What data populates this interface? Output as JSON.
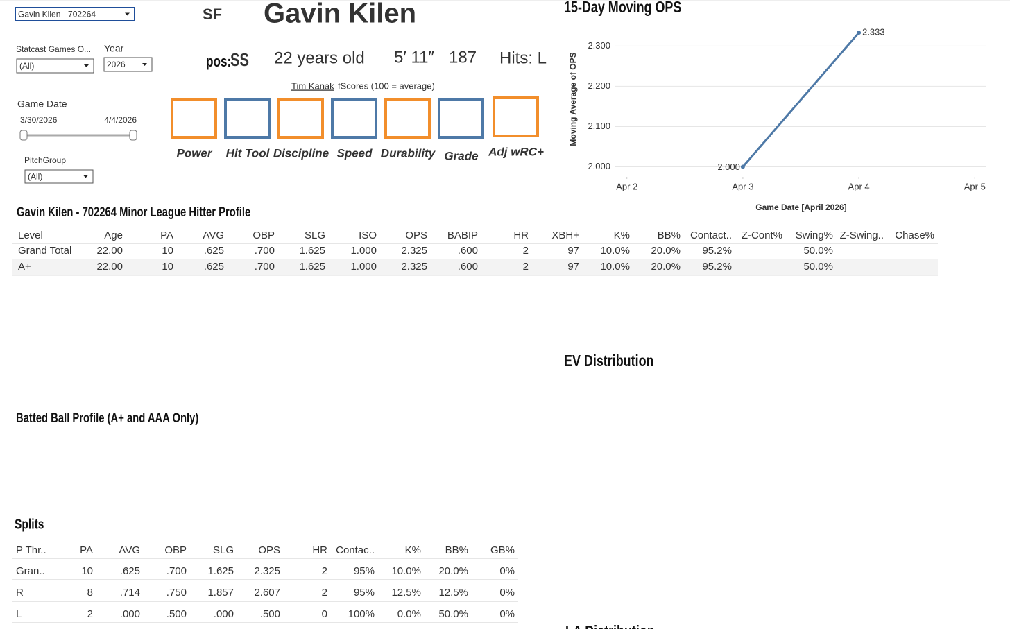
{
  "filters": {
    "batter": "Gavin Kilen - 702264",
    "statcast_label": "Statcast Games O...",
    "statcast_value": "(All)",
    "year_label": "Year",
    "year_value": "2026",
    "game_date_label": "Game Date",
    "date_start": "3/30/2026",
    "date_end": "4/4/2026",
    "pitchgroup_label": "PitchGroup",
    "pitchgroup_value": "(All)"
  },
  "header": {
    "team": "SF",
    "name": "Gavin Kilen",
    "pos_label": "pos:",
    "pos": "SS",
    "age": "22 years old",
    "height": "5′ 11″",
    "weight": "187",
    "hits": "Hits:  L"
  },
  "fscores": {
    "author": "Tim Kanak",
    "caption": "fScores (100 = average)",
    "boxes": [
      {
        "label": "Power",
        "color": "#f28e2b"
      },
      {
        "label": "Hit Tool",
        "color": "#4e79a7"
      },
      {
        "label": "Discipline",
        "color": "#f28e2b"
      },
      {
        "label": "Speed",
        "color": "#4e79a7"
      },
      {
        "label": "Durability",
        "color": "#f28e2b"
      },
      {
        "label": "Grade",
        "color": "#4e79a7"
      },
      {
        "label": "Adj wRC+",
        "color": "#f28e2b"
      }
    ]
  },
  "chart_data": {
    "type": "line",
    "title": "15-Day Moving OPS",
    "x_label": "Game Date [April 2026]",
    "y_label": "Moving Average of OPS",
    "x": [
      3,
      4
    ],
    "values": [
      2.0,
      2.333
    ],
    "value_labels": [
      "2.000",
      "2.333"
    ],
    "color": "#4e79a7",
    "xlim": [
      1.9,
      5.1
    ],
    "xticks": [
      {
        "value": 2,
        "label": "Apr 2"
      },
      {
        "value": 3,
        "label": "Apr 3"
      },
      {
        "value": 4,
        "label": "Apr 4"
      },
      {
        "value": 5,
        "label": "Apr 5"
      }
    ],
    "ylim": [
      1.975,
      2.354
    ],
    "yticks": [
      {
        "value": 2,
        "label": "2.000"
      },
      {
        "value": 2.1,
        "label": "2.100"
      },
      {
        "value": 2.2,
        "label": "2.200"
      },
      {
        "value": 2.3,
        "label": "2.300"
      }
    ],
    "grid": true
  },
  "profile": {
    "title": "Gavin Kilen - 702264 Minor League Hitter Profile",
    "columns": [
      "Level",
      "Age",
      "PA",
      "AVG",
      "OBP",
      "SLG",
      "ISO",
      "OPS",
      "BABIP",
      "HR",
      "XBH+",
      "K%",
      "BB%",
      "Contact..",
      "Z-Cont%",
      "Swing%",
      "Z-Swing..",
      "Chase%"
    ],
    "rows": [
      [
        "Grand Total",
        "22.00",
        "10",
        ".625",
        ".700",
        "1.625",
        "1.000",
        "2.325",
        ".600",
        "2",
        "97",
        "10.0%",
        "20.0%",
        "95.2%",
        null,
        "50.0%",
        null,
        null
      ],
      [
        "A+",
        "22.00",
        "10",
        ".625",
        ".700",
        "1.625",
        "1.000",
        "2.325",
        ".600",
        "2",
        "97",
        "10.0%",
        "20.0%",
        "95.2%",
        null,
        "50.0%",
        null,
        null
      ]
    ]
  },
  "sections": {
    "batted_ball": "Batted Ball Profile (A+ and AAA Only)",
    "ev": "EV Distribution",
    "la": "LA Distribution"
  },
  "splits": {
    "title": "Splits",
    "columns": [
      "P Thr..",
      "PA",
      "AVG",
      "OBP",
      "SLG",
      "OPS",
      "HR",
      "Contac..",
      "K%",
      "BB%",
      "GB%"
    ],
    "rows": [
      [
        "Gran..",
        "10",
        ".625",
        ".700",
        "1.625",
        "2.325",
        "2",
        "95%",
        "10.0%",
        "20.0%",
        "0%"
      ],
      [
        "R",
        "8",
        ".714",
        ".750",
        "1.857",
        "2.607",
        "2",
        "95%",
        "12.5%",
        "12.5%",
        "0%"
      ],
      [
        "L",
        "2",
        ".000",
        ".500",
        ".000",
        ".500",
        "0",
        "100%",
        "0.0%",
        "50.0%",
        "0%"
      ]
    ]
  }
}
